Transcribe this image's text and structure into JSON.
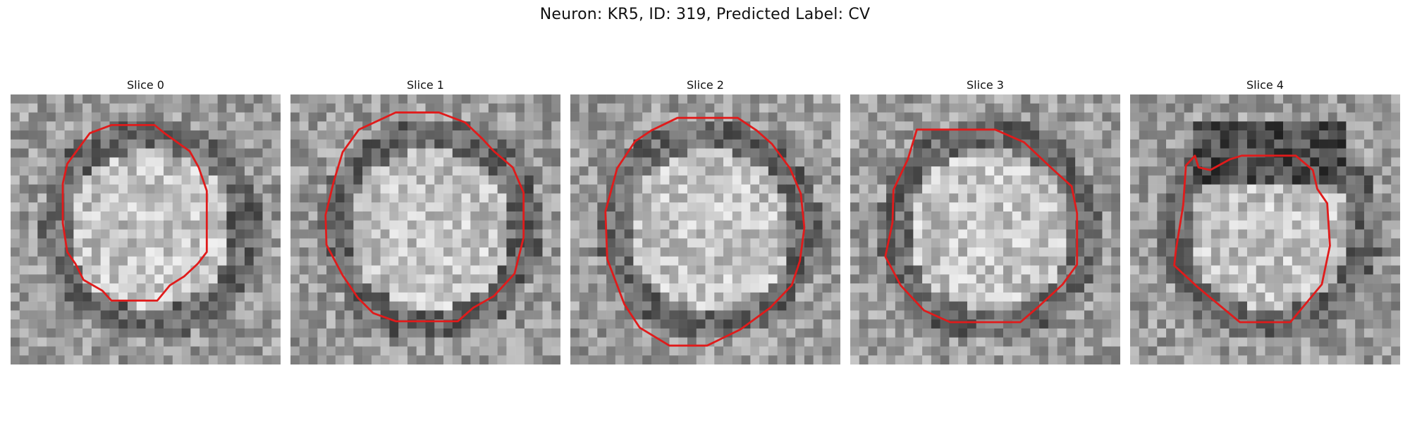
{
  "figure": {
    "title": "Neuron: KR5, ID: 319, Predicted Label: CV"
  },
  "panels": [
    {
      "title": "Slice 0",
      "seed": 11,
      "brightness": "center-bright",
      "contour_color": "#e01b1b"
    },
    {
      "title": "Slice 1",
      "seed": 23,
      "brightness": "center-bright",
      "contour_color": "#e01b1b"
    },
    {
      "title": "Slice 2",
      "seed": 37,
      "brightness": "center-bright",
      "contour_color": "#e01b1b"
    },
    {
      "title": "Slice 3",
      "seed": 41,
      "brightness": "center-bright",
      "contour_color": "#e01b1b"
    },
    {
      "title": "Slice 4",
      "seed": 53,
      "brightness": "dark-rim-top",
      "contour_color": "#e01b1b"
    }
  ]
}
